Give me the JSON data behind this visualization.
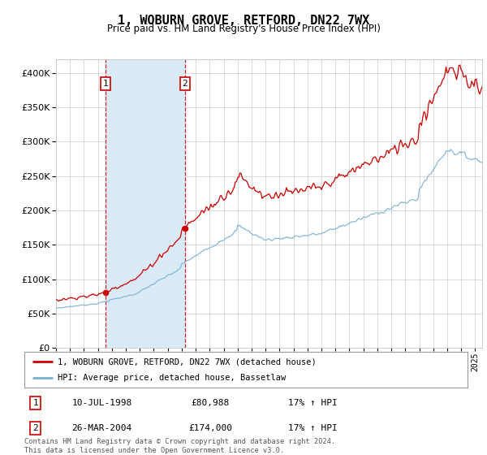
{
  "title": "1, WOBURN GROVE, RETFORD, DN22 7WX",
  "subtitle": "Price paid vs. HM Land Registry's House Price Index (HPI)",
  "ylim": [
    0,
    420000
  ],
  "yticks": [
    0,
    50000,
    100000,
    150000,
    200000,
    250000,
    300000,
    350000,
    400000
  ],
  "xlim_start": 1995.0,
  "xlim_end": 2025.5,
  "sale1_date": 1998.53,
  "sale1_price": 80988,
  "sale1_label": "1",
  "sale2_date": 2004.23,
  "sale2_price": 174000,
  "sale2_label": "2",
  "shade_color": "#daeaf7",
  "vline_color": "#cc0000",
  "hpi_color": "#7aafd4",
  "price_color": "#cc0000",
  "legend_price_label": "1, WOBURN GROVE, RETFORD, DN22 7WX (detached house)",
  "legend_hpi_label": "HPI: Average price, detached house, Bassetlaw",
  "table_rows": [
    [
      "1",
      "10-JUL-1998",
      "£80,988",
      "17% ↑ HPI"
    ],
    [
      "2",
      "26-MAR-2004",
      "£174,000",
      "17% ↑ HPI"
    ]
  ],
  "footnote": "Contains HM Land Registry data © Crown copyright and database right 2024.\nThis data is licensed under the Open Government Licence v3.0.",
  "background_color": "#ffffff",
  "grid_color": "#cccccc"
}
